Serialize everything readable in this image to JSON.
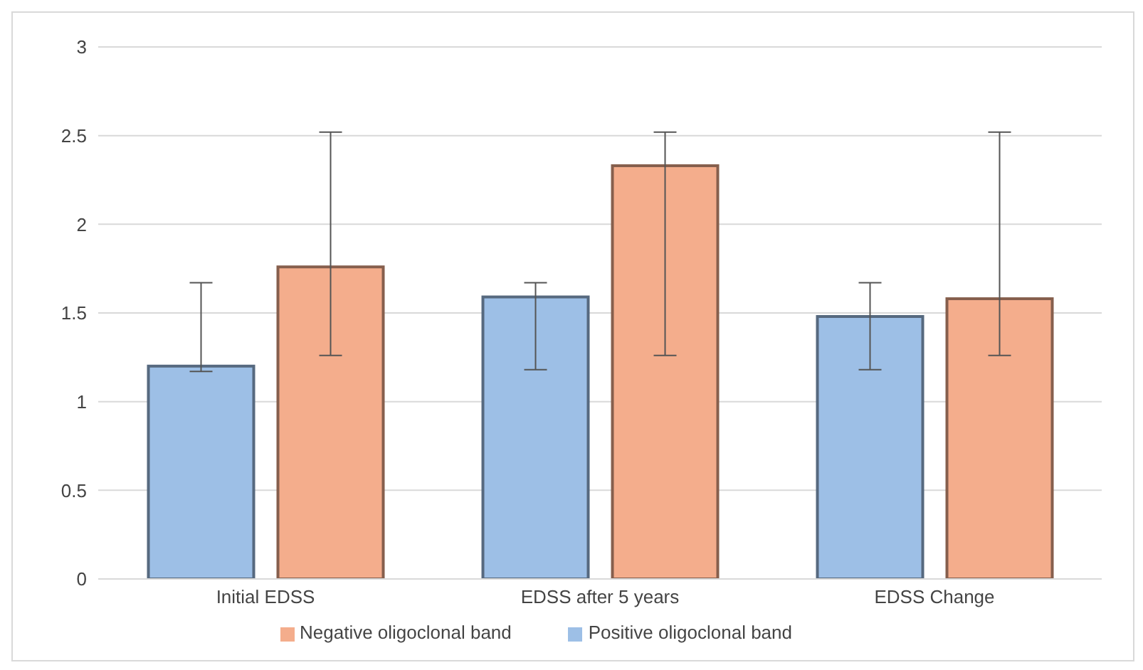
{
  "chart_data": {
    "type": "bar",
    "categories": [
      "Initial EDSS",
      "EDSS after 5 years",
      "EDSS Change"
    ],
    "series": [
      {
        "name": "Positive oligoclonal band",
        "color": "#9dbfe6",
        "values": [
          1.2,
          1.59,
          1.48
        ],
        "errors": [
          [
            1.17,
            1.67
          ],
          [
            1.18,
            1.67
          ],
          [
            1.18,
            1.67
          ]
        ]
      },
      {
        "name": "Negative oligoclonal band",
        "color": "#f4ad8c",
        "values": [
          1.76,
          2.33,
          1.58
        ],
        "errors": [
          [
            1.26,
            2.52
          ],
          [
            1.26,
            2.52
          ],
          [
            1.26,
            2.52
          ]
        ]
      }
    ],
    "ylim": [
      0,
      3
    ],
    "yticks": [
      0,
      0.5,
      1,
      1.5,
      2,
      2.5,
      3
    ],
    "grid": "y",
    "legend": "bottom"
  }
}
